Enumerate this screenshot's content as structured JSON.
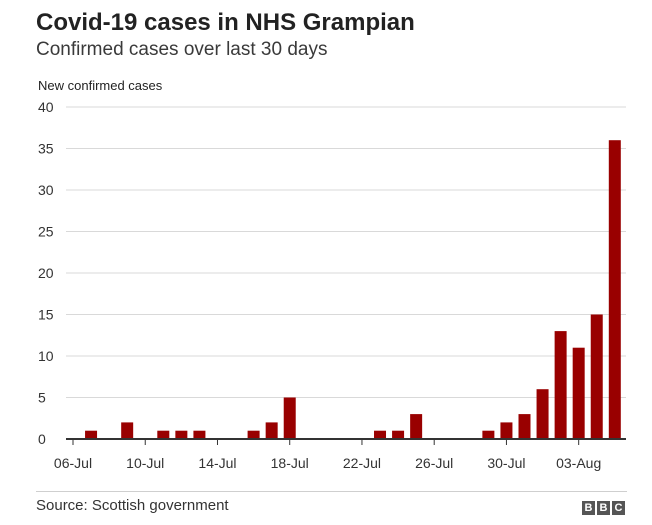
{
  "title": "Covid-19 cases in NHS Grampian",
  "subtitle": "Confirmed cases over last 30 days",
  "source": "Source: Scottish government",
  "logo": {
    "letters": [
      "B",
      "B",
      "C"
    ]
  },
  "colors": {
    "bar": "#990000",
    "grid": "#d9d9d9",
    "axis": "#333333"
  },
  "chart_data": {
    "type": "bar",
    "ylabel": "New confirmed cases",
    "xlabel": "",
    "ylim": [
      0,
      40
    ],
    "yticks": [
      0,
      5,
      10,
      15,
      20,
      25,
      30,
      35,
      40
    ],
    "grid": true,
    "categories": [
      "06-Jul",
      "07-Jul",
      "08-Jul",
      "09-Jul",
      "10-Jul",
      "11-Jul",
      "12-Jul",
      "13-Jul",
      "14-Jul",
      "15-Jul",
      "16-Jul",
      "17-Jul",
      "18-Jul",
      "19-Jul",
      "20-Jul",
      "21-Jul",
      "22-Jul",
      "23-Jul",
      "24-Jul",
      "25-Jul",
      "26-Jul",
      "27-Jul",
      "28-Jul",
      "29-Jul",
      "30-Jul",
      "31-Jul",
      "01-Aug",
      "02-Aug",
      "03-Aug",
      "04-Aug",
      "05-Aug"
    ],
    "xtick_labels": [
      "06-Jul",
      "10-Jul",
      "14-Jul",
      "18-Jul",
      "22-Jul",
      "26-Jul",
      "30-Jul",
      "03-Aug"
    ],
    "values": [
      0,
      1,
      0,
      2,
      0,
      1,
      1,
      1,
      0,
      0,
      1,
      2,
      5,
      0,
      0,
      0,
      0,
      1,
      1,
      3,
      0,
      0,
      0,
      1,
      2,
      3,
      6,
      13,
      11,
      15,
      36
    ]
  }
}
